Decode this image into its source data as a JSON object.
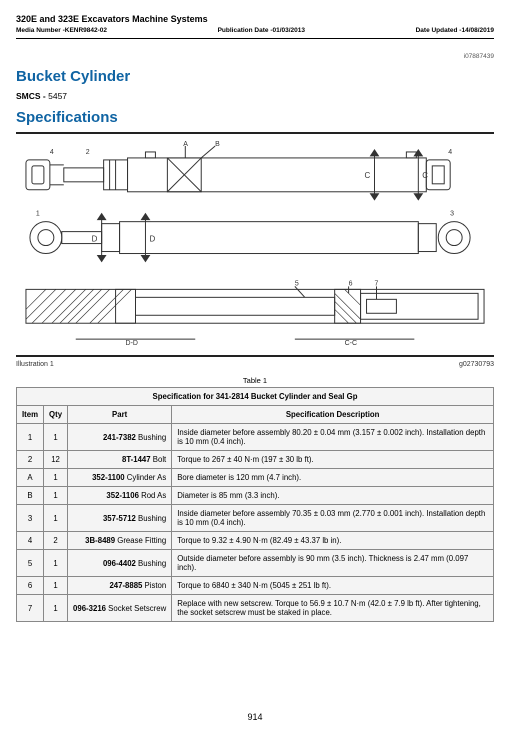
{
  "header": {
    "doc_title": "320E and 323E Excavators Machine Systems",
    "media_number_label": "Media Number -KENR9842-02",
    "pub_date_label": "Publication Date -01/03/2013",
    "updated_label": "Date Updated -14/08/2019",
    "topright_code": "i07887439"
  },
  "section1": "Bucket Cylinder",
  "smcs_label": "SMCS - ",
  "smcs_value": "5457",
  "section2": "Specifications",
  "illustration_label": "Illustration 1",
  "illustration_code": "g02730793",
  "table": {
    "caption_label": "Table 1",
    "title": "Specification for 341-2814 Bucket Cylinder and Seal Gp",
    "headers": {
      "item": "Item",
      "qty": "Qty",
      "part": "Part",
      "desc": "Specification Description"
    },
    "rows": [
      {
        "item": "1",
        "qty": "1",
        "part_no": "241-7382",
        "part_name": "Bushing",
        "desc": "Inside diameter before assembly 80.20 ± 0.04 mm (3.157 ± 0.002 inch). Installation depth is 10 mm (0.4 inch)."
      },
      {
        "item": "2",
        "qty": "12",
        "part_no": "8T-1447",
        "part_name": "Bolt",
        "desc": "Torque to 267 ± 40 N·m (197 ± 30 lb ft)."
      },
      {
        "item": "A",
        "qty": "1",
        "part_no": "352-1100",
        "part_name": "Cylinder As",
        "desc": "Bore diameter is 120 mm (4.7 inch)."
      },
      {
        "item": "B",
        "qty": "1",
        "part_no": "352-1106",
        "part_name": "Rod As",
        "desc": "Diameter is 85 mm (3.3 inch)."
      },
      {
        "item": "3",
        "qty": "1",
        "part_no": "357-5712",
        "part_name": "Bushing",
        "desc": "Inside diameter before assembly 70.35 ± 0.03 mm (2.770 ± 0.001 inch). Installation depth is 10 mm (0.4 inch)."
      },
      {
        "item": "4",
        "qty": "2",
        "part_no": "3B-8489",
        "part_name": "Grease Fitting",
        "desc": "Torque to 9.32 ± 4.90 N·m (82.49 ± 43.37 lb in)."
      },
      {
        "item": "5",
        "qty": "1",
        "part_no": "096-4402",
        "part_name": "Bushing",
        "desc": "Outside diameter before assembly is 90 mm (3.5 inch). Thickness is 2.47 mm (0.097 inch)."
      },
      {
        "item": "6",
        "qty": "1",
        "part_no": "247-8885",
        "part_name": "Piston",
        "desc": "Torque to 6840 ± 340 N·m (5045 ± 251 lb ft)."
      },
      {
        "item": "7",
        "qty": "1",
        "part_no": "096-3216",
        "part_name": "Socket Setscrew",
        "desc": "Replace with new setscrew. Torque to 56.9 ± 10.7 N·m (42.0 ± 7.9 lb ft). After tightening, the socket setscrew must be staked in place."
      }
    ]
  },
  "page_number": "914",
  "diagram_labels": {
    "A": "A",
    "B": "B",
    "C": "C",
    "D": "D",
    "s1": "1",
    "s2": "2",
    "s3": "3",
    "s4": "4",
    "s5": "5",
    "s6": "6",
    "s7": "7",
    "dd": "D-D",
    "cc": "C-C"
  },
  "colors": {
    "heading": "#1064a3",
    "stroke": "#333333",
    "table_bg": "#f4f4f4",
    "border": "#888888"
  }
}
